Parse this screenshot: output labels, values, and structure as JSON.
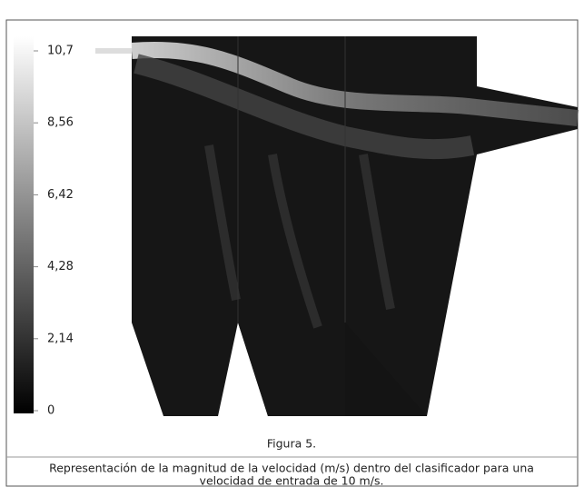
{
  "figure": {
    "label": "Figura 5.",
    "caption": [
      "Representación de la magnitud de la velocidad (m/s) dentro del clasificador para una",
      "velocidad de entrada de 10 m/s."
    ],
    "colorbar": {
      "lim": [
        0,
        10.7
      ],
      "ticks": [
        0,
        {
          "value": 2.14,
          "label": "2,14"
        },
        {
          "value": 4.28,
          "label": "4,28"
        },
        {
          "value": 6.42,
          "label": "6,42"
        },
        {
          "value": 8.56,
          "label": "8,56"
        },
        {
          "value": 10.7,
          "label": "10,7"
        }
      ]
    }
  }
}
